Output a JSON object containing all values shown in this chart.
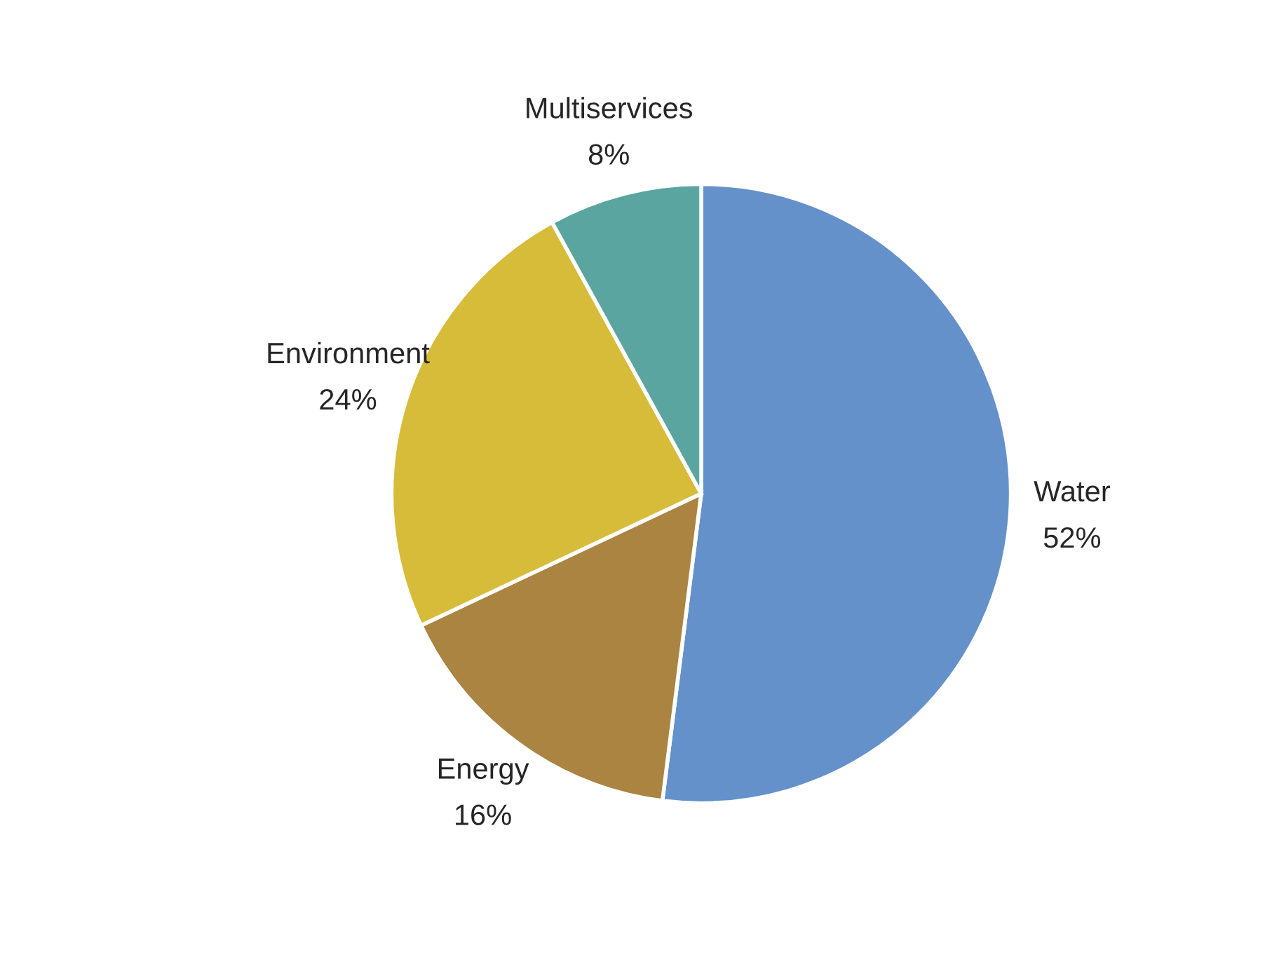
{
  "chart_data": {
    "type": "pie",
    "categories": [
      "Water",
      "Energy",
      "Environment",
      "Multiservices"
    ],
    "values": [
      52,
      16,
      24,
      8
    ],
    "value_labels": [
      "52%",
      "16%",
      "24%",
      "8%"
    ],
    "colors": [
      "#6591cb",
      "#ab8441",
      "#d7bc3a",
      "#5ba5a0"
    ]
  }
}
